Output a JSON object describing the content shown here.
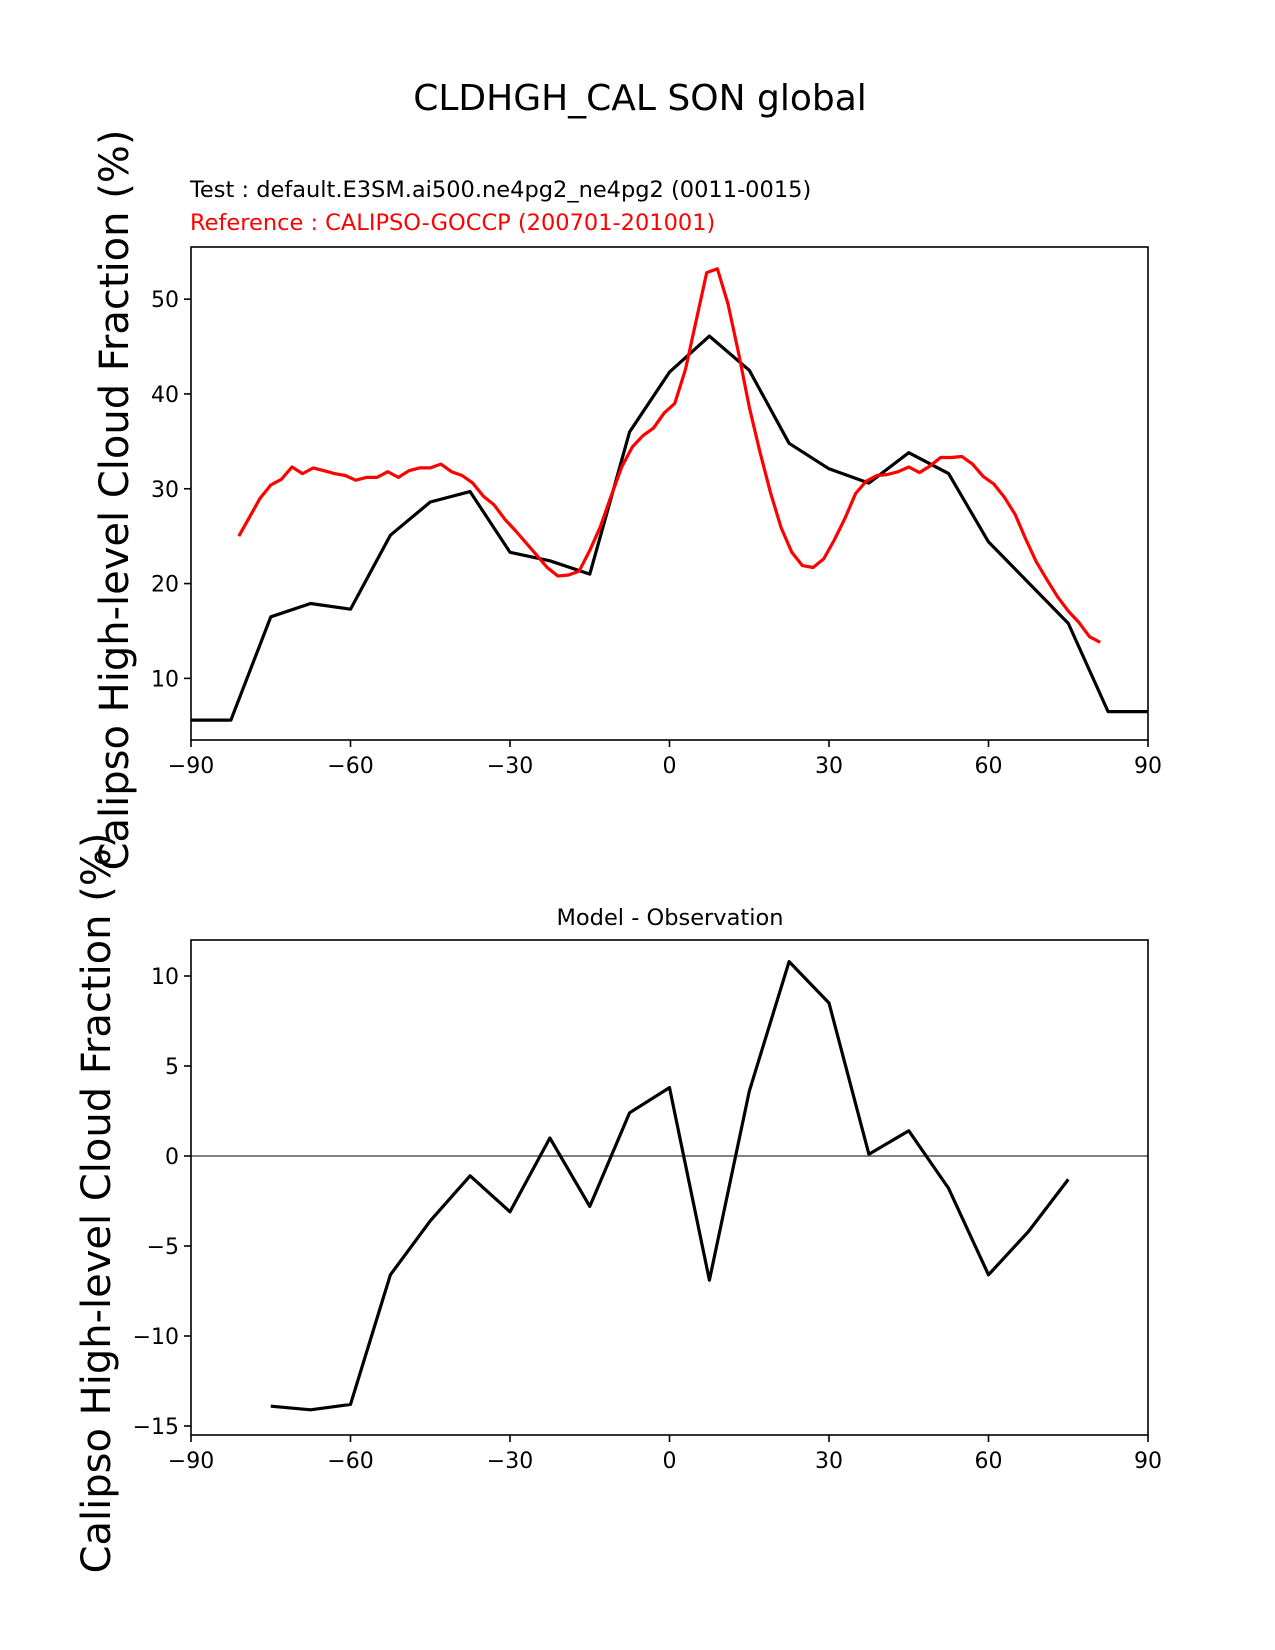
{
  "suptitle": "CLDHGH_CAL SON global",
  "test_label": "Test : default.E3SM.ai500.ne4pg2_ne4pg2 (0011-0015)",
  "ref_label": "Reference : CALIPSO-GOCCP (200701-201001)",
  "colors": {
    "test": "#000000",
    "reference": "#ff0000",
    "zero_line": "#808080"
  },
  "chart_data": [
    {
      "type": "line",
      "xlabel": "",
      "ylabel": "Calipso High-level Cloud Fraction (%)",
      "xlim": [
        -90,
        90
      ],
      "ylim": [
        3.5,
        55.5
      ],
      "xticks": [
        -90,
        -60,
        -30,
        0,
        30,
        60,
        90
      ],
      "xtick_labels": [
        "−90",
        "−60",
        "−30",
        "0",
        "30",
        "60",
        "90"
      ],
      "yticks": [
        10,
        20,
        30,
        40,
        50
      ],
      "ytick_labels": [
        "10",
        "20",
        "30",
        "40",
        "50"
      ],
      "grid": false,
      "series": [
        {
          "key": "test",
          "x": [
            -90,
            -82.5,
            -75,
            -67.5,
            -60,
            -52.5,
            -45,
            -37.5,
            -30,
            -22.5,
            -15,
            -7.5,
            0,
            7.5,
            15,
            22.5,
            30,
            37.5,
            45,
            52.5,
            60,
            67.5,
            75,
            82.5,
            90
          ],
          "y": [
            5.6,
            5.6,
            16.5,
            17.9,
            17.3,
            25.1,
            28.6,
            29.7,
            23.3,
            22.4,
            21.0,
            36.0,
            42.3,
            46.1,
            42.5,
            34.8,
            32.1,
            30.6,
            33.8,
            31.6,
            24.4,
            20.1,
            15.8,
            6.5,
            6.5
          ]
        },
        {
          "key": "reference",
          "x": [
            -81,
            -79,
            -77,
            -75,
            -73,
            -71,
            -69,
            -67,
            -65,
            -63,
            -61,
            -59,
            -57,
            -55,
            -53,
            -51,
            -49,
            -47,
            -45,
            -43,
            -41,
            -39,
            -37,
            -35,
            -33,
            -31,
            -29,
            -27,
            -25,
            -23,
            -21,
            -19,
            -17,
            -15,
            -13,
            -11,
            -9,
            -7,
            -5,
            -3,
            -1,
            1,
            3,
            5,
            7,
            9,
            11,
            13,
            15,
            17,
            19,
            21,
            23,
            25,
            27,
            29,
            31,
            33,
            35,
            37,
            39,
            41,
            43,
            45,
            47,
            49,
            51,
            53,
            55,
            57,
            59,
            61,
            63,
            65,
            67,
            69,
            71,
            73,
            75,
            77,
            79,
            81
          ],
          "y": [
            25.0,
            27.0,
            29.0,
            30.4,
            31.0,
            32.3,
            31.6,
            32.2,
            31.9,
            31.6,
            31.4,
            30.9,
            31.2,
            31.2,
            31.8,
            31.2,
            31.9,
            32.2,
            32.2,
            32.6,
            31.8,
            31.4,
            30.6,
            29.2,
            28.3,
            26.8,
            25.6,
            24.3,
            23.0,
            21.7,
            20.8,
            20.9,
            21.3,
            23.5,
            26.0,
            29.2,
            32.3,
            34.4,
            35.6,
            36.4,
            38.0,
            39.0,
            42.6,
            47.7,
            52.8,
            53.2,
            49.5,
            44.3,
            38.6,
            33.9,
            29.6,
            25.9,
            23.3,
            21.9,
            21.7,
            22.6,
            24.6,
            26.9,
            29.5,
            30.8,
            31.4,
            31.5,
            31.8,
            32.3,
            31.7,
            32.4,
            33.3,
            33.3,
            33.4,
            32.6,
            31.3,
            30.5,
            29.1,
            27.3,
            24.7,
            22.3,
            20.4,
            18.6,
            17.1,
            15.9,
            14.4,
            13.8
          ]
        }
      ]
    },
    {
      "type": "line",
      "title": "Model - Observation",
      "xlabel": "",
      "ylabel": "Calipso High-level Cloud Fraction (%)",
      "xlim": [
        -90,
        90
      ],
      "ylim": [
        -15.5,
        12.0
      ],
      "xticks": [
        -90,
        -60,
        -30,
        0,
        30,
        60,
        90
      ],
      "xtick_labels": [
        "−90",
        "−60",
        "−30",
        "0",
        "30",
        "60",
        "90"
      ],
      "yticks": [
        10,
        5,
        0,
        -5,
        -10,
        -15
      ],
      "ytick_labels": [
        "10",
        "5",
        "0",
        "−5",
        "−10",
        "−15"
      ],
      "grid": false,
      "zero_line": 0,
      "series": [
        {
          "key": "test",
          "x": [
            -75,
            -67.5,
            -60,
            -52.5,
            -45,
            -37.5,
            -30,
            -22.5,
            -15,
            -7.5,
            0,
            7.5,
            15,
            22.5,
            30,
            37.5,
            45,
            52.5,
            60,
            67.5,
            75
          ],
          "y": [
            -13.9,
            -14.1,
            -13.8,
            -6.6,
            -3.6,
            -1.1,
            -3.1,
            1.0,
            -2.8,
            2.4,
            3.8,
            -6.9,
            3.6,
            10.8,
            8.5,
            0.1,
            1.4,
            -1.8,
            -6.6,
            -4.2,
            -1.3
          ]
        }
      ]
    }
  ]
}
